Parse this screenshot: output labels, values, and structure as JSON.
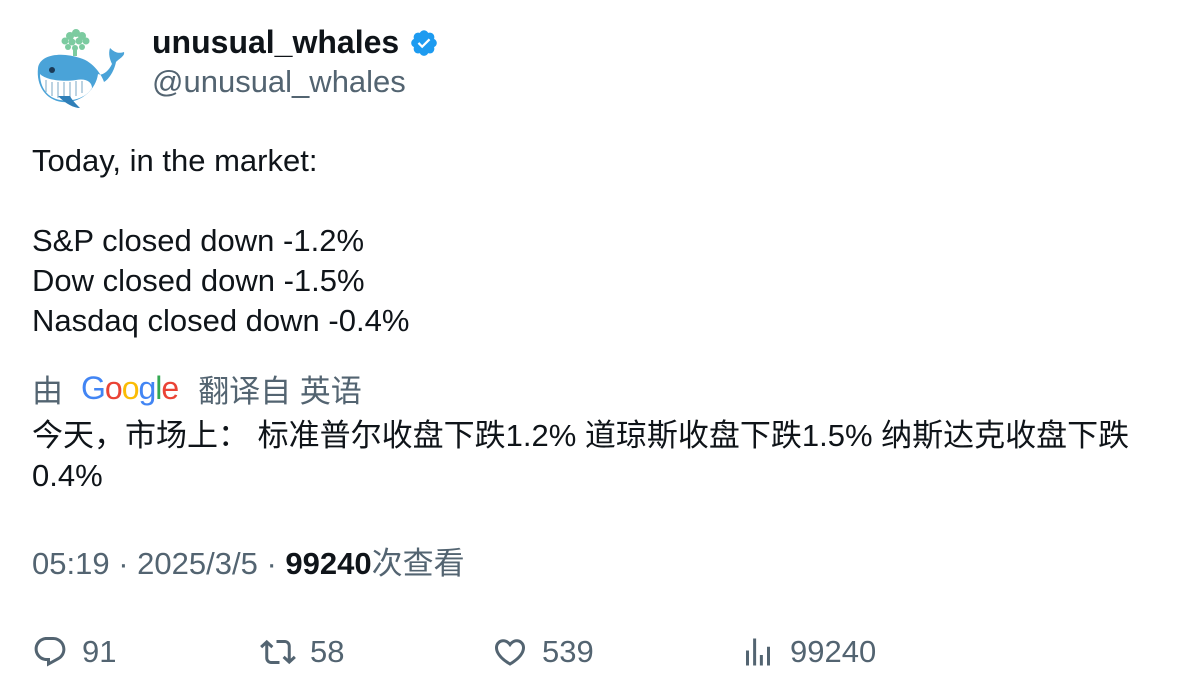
{
  "author": {
    "display_name": "unusual_whales",
    "handle": "@unusual_whales",
    "verified": true,
    "avatar_icon": "whale-logo-icon"
  },
  "tweet": {
    "lines": [
      "Today, in the market:",
      "",
      "S&P closed down -1.2%",
      "Dow closed down -1.5%",
      "Nasdaq closed down -0.4%"
    ]
  },
  "translation": {
    "by_label": "由",
    "provider": "Google",
    "from_label": "翻译自 英语",
    "text": "今天，市场上： 标准普尔收盘下跌1.2% 道琼斯收盘下跌1.5% 纳斯达克收盘下跌0.4%"
  },
  "meta": {
    "time": "05:19",
    "separator": "·",
    "date": "2025/3/5",
    "views_count": "99240",
    "views_label": "次查看"
  },
  "actions": {
    "replies": "91",
    "reposts": "58",
    "likes": "539",
    "views": "99240"
  },
  "colors": {
    "text": "#0f1419",
    "secondary": "#536471",
    "verified": "#1d9bf0",
    "google_blue": "#4285F4",
    "google_red": "#EA4335",
    "google_yellow": "#FBBC05",
    "google_green": "#34A853"
  }
}
